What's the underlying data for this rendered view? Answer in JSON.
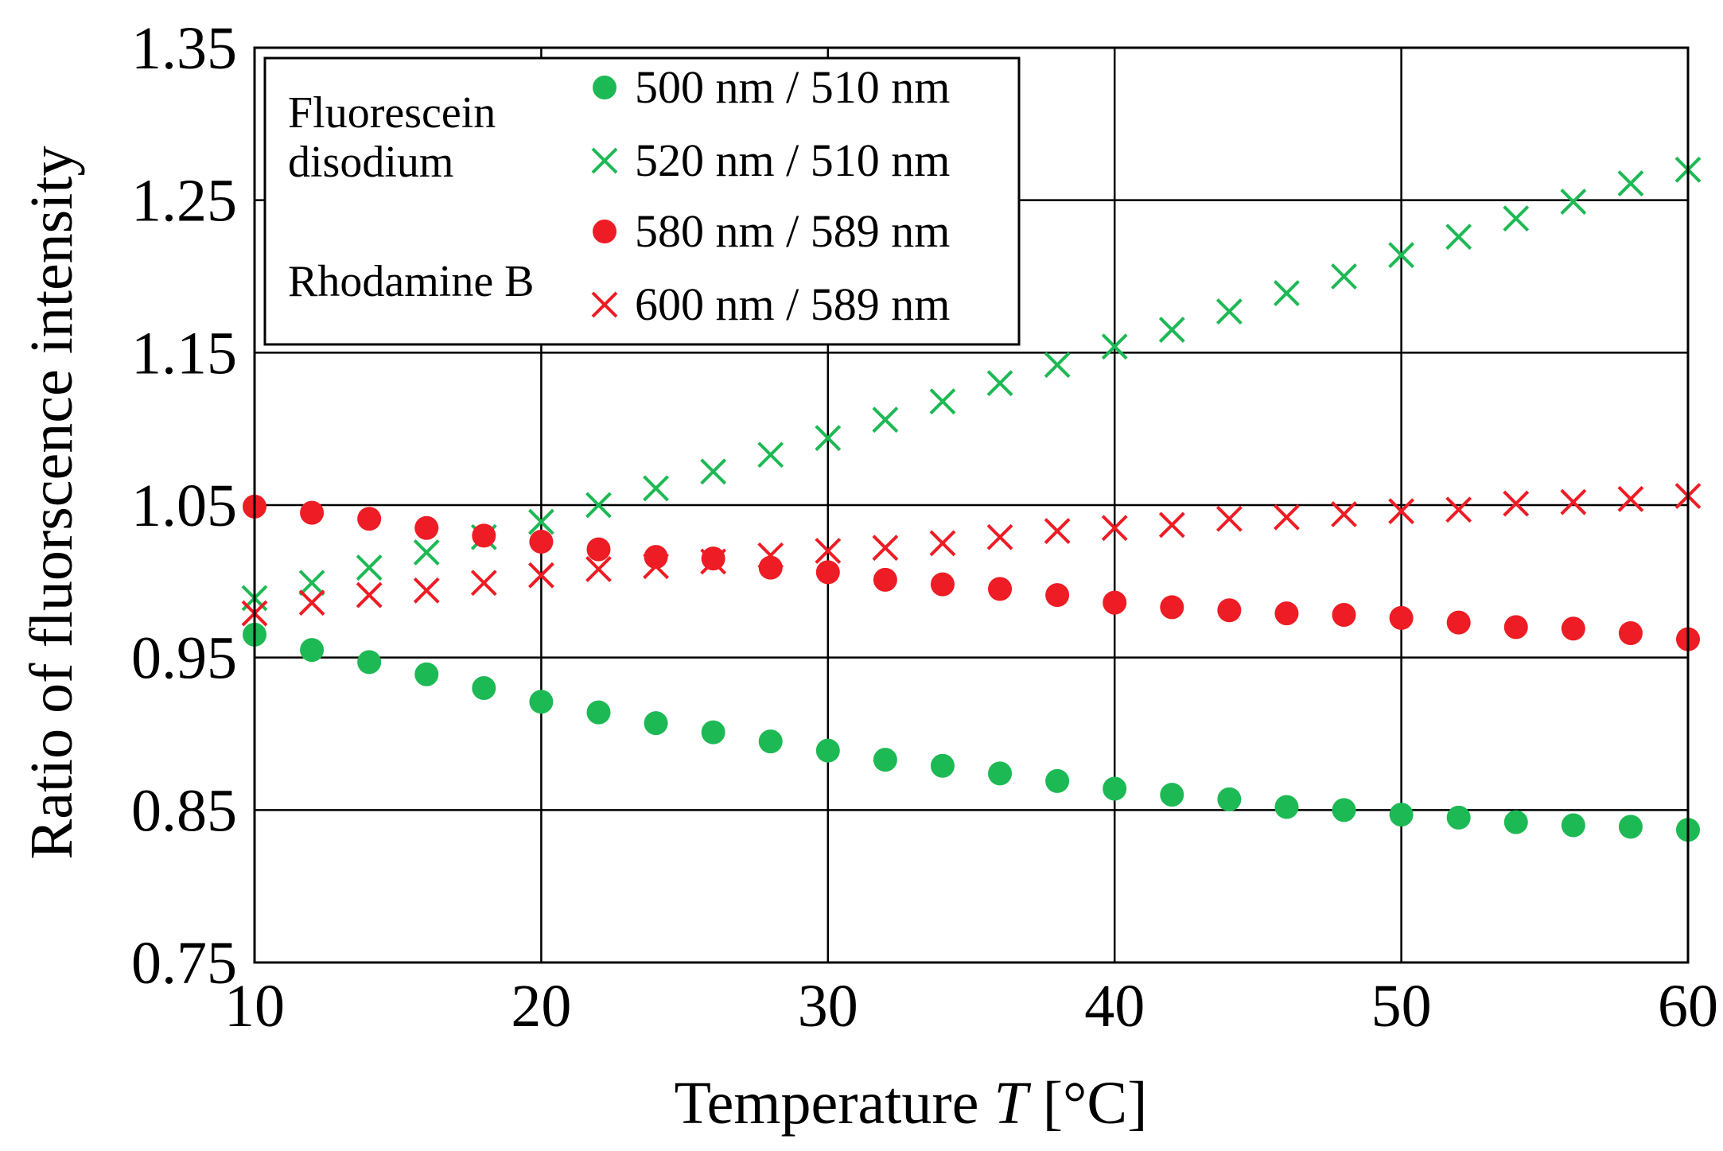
{
  "chart_data": {
    "type": "scatter",
    "title": "",
    "xlabel_main": "Temperature ",
    "xlabel_var": "T",
    "xlabel_unit": " [°C]",
    "ylabel": "Ratio of fluorscence intensity",
    "xlim": [
      10,
      60
    ],
    "ylim": [
      0.75,
      1.35
    ],
    "x_ticks": [
      10,
      20,
      30,
      40,
      50,
      60
    ],
    "y_ticks": [
      0.75,
      0.85,
      0.95,
      1.05,
      1.15,
      1.25,
      1.35
    ],
    "x_tick_labels": [
      "10",
      "20",
      "30",
      "40",
      "50",
      "60"
    ],
    "y_tick_labels": [
      "0.75",
      "0.85",
      "0.95",
      "1.05",
      "1.15",
      "1.25",
      "1.35"
    ],
    "grid": true,
    "legend_position": "top-left",
    "legend_groups": [
      {
        "line1": "Fluorescein",
        "line2": "disodium"
      },
      {
        "line1": "Rhodamine B",
        "line2": ""
      }
    ],
    "x": [
      10,
      12,
      14,
      16,
      18,
      20,
      22,
      24,
      26,
      28,
      30,
      32,
      34,
      36,
      38,
      40,
      42,
      44,
      46,
      48,
      50,
      52,
      54,
      56,
      58,
      60
    ],
    "series": [
      {
        "name": "500 nm / 510 nm",
        "group": "Fluorescein disodium",
        "marker": "circle",
        "color": "#1db954",
        "values": [
          0.965,
          0.955,
          0.947,
          0.939,
          0.93,
          0.921,
          0.914,
          0.907,
          0.901,
          0.895,
          0.889,
          0.883,
          0.879,
          0.874,
          0.869,
          0.864,
          0.86,
          0.857,
          0.852,
          0.85,
          0.847,
          0.845,
          0.842,
          0.84,
          0.839,
          0.837
        ]
      },
      {
        "name": "520 nm / 510 nm",
        "group": "Fluorescein disodium",
        "marker": "cross",
        "color": "#1db954",
        "values": [
          0.989,
          0.999,
          1.009,
          1.019,
          1.029,
          1.039,
          1.05,
          1.061,
          1.072,
          1.083,
          1.094,
          1.106,
          1.118,
          1.13,
          1.142,
          1.154,
          1.165,
          1.177,
          1.189,
          1.2,
          1.214,
          1.226,
          1.238,
          1.249,
          1.261,
          1.27
        ]
      },
      {
        "name": "580 nm / 589 nm",
        "group": "Rhodamine B",
        "marker": "circle",
        "color": "#ee1c24",
        "values": [
          1.049,
          1.045,
          1.041,
          1.035,
          1.03,
          1.026,
          1.021,
          1.016,
          1.015,
          1.009,
          1.006,
          1.001,
          0.998,
          0.995,
          0.991,
          0.986,
          0.983,
          0.981,
          0.979,
          0.978,
          0.976,
          0.973,
          0.97,
          0.969,
          0.966,
          0.962
        ]
      },
      {
        "name": "600 nm / 589 nm",
        "group": "Rhodamine B",
        "marker": "cross",
        "color": "#ee1c24",
        "values": [
          0.979,
          0.986,
          0.991,
          0.994,
          0.999,
          1.004,
          1.008,
          1.01,
          1.013,
          1.017,
          1.02,
          1.022,
          1.025,
          1.029,
          1.033,
          1.035,
          1.037,
          1.041,
          1.042,
          1.044,
          1.046,
          1.047,
          1.051,
          1.052,
          1.054,
          1.056
        ]
      }
    ]
  }
}
